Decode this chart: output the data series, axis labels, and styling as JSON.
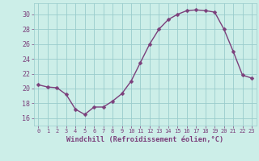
{
  "x": [
    0,
    1,
    2,
    3,
    4,
    5,
    6,
    7,
    8,
    9,
    10,
    11,
    12,
    13,
    14,
    15,
    16,
    17,
    18,
    19,
    20,
    21,
    22,
    23
  ],
  "y": [
    20.5,
    20.2,
    20.1,
    19.2,
    17.2,
    16.5,
    17.5,
    17.5,
    18.3,
    19.3,
    21.0,
    23.5,
    26.0,
    28.0,
    29.3,
    30.0,
    30.5,
    30.6,
    30.5,
    30.3,
    28.0,
    25.0,
    21.8,
    21.4
  ],
  "line_color": "#7b3f7b",
  "marker_color": "#7b3f7b",
  "bg_color": "#cceee8",
  "grid_color": "#99cccc",
  "xlabel": "Windchill (Refroidissement éolien,°C)",
  "xlabel_color": "#7b3f7b",
  "tick_color": "#7b3f7b",
  "ylim": [
    15.0,
    31.5
  ],
  "xlim": [
    -0.5,
    23.5
  ],
  "yticks": [
    16,
    18,
    20,
    22,
    24,
    26,
    28,
    30
  ],
  "xticks": [
    0,
    1,
    2,
    3,
    4,
    5,
    6,
    7,
    8,
    9,
    10,
    11,
    12,
    13,
    14,
    15,
    16,
    17,
    18,
    19,
    20,
    21,
    22,
    23
  ],
  "xtick_labels": [
    "0",
    "1",
    "2",
    "3",
    "4",
    "5",
    "6",
    "7",
    "8",
    "9",
    "10",
    "11",
    "12",
    "13",
    "14",
    "15",
    "16",
    "17",
    "18",
    "19",
    "20",
    "21",
    "22",
    "23"
  ],
  "line_width": 1.0,
  "marker_size": 2.5,
  "marker_style": "D"
}
